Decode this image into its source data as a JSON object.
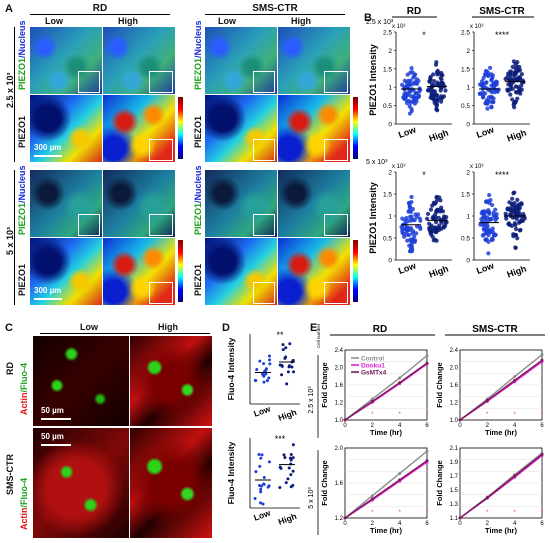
{
  "panelA": {
    "letter": "A",
    "rd_title": "RD",
    "sms_title": "SMS-CTR",
    "col_low": "Low",
    "col_high": "High",
    "density1": "2.5 x 10³",
    "density2": "5 x 10³",
    "label_piezo_nucleus_a": "PIEZO1",
    "label_piezo_nucleus_b": "/Nucleus",
    "label_piezo1": "PIEZO1",
    "scalebar": "300 µm",
    "colorbar_ticks": [
      "x10⁴",
      "2",
      "1.8",
      "1.6",
      "1.4",
      "1.2",
      "1",
      "0.8",
      "0.6"
    ]
  },
  "panelB": {
    "letter": "B",
    "rd_title": "RD",
    "sms_title": "SMS-CTR",
    "density1": "2.5 x 10³",
    "density2": "5 x 10³",
    "ylabel": "PIEZO1 Intensity",
    "yunit": "x 10³",
    "yticks": [
      "2.5",
      "2",
      "1.5",
      "1",
      "0.5",
      "0"
    ],
    "yticks2": [
      "2",
      "1.5",
      "1",
      "0.5",
      "0"
    ],
    "x_low": "Low",
    "x_high": "High",
    "sig": [
      "*",
      "****",
      "*",
      "****"
    ]
  },
  "panelC": {
    "letter": "C",
    "col_low": "Low",
    "col_high": "High",
    "row_rd": "RD",
    "row_sms": "SMS-CTR",
    "label_actin": "Actin",
    "label_fluo": "/Fluo-4",
    "scalebar": "50 µm"
  },
  "panelD": {
    "letter": "D",
    "ylabel": "Fluo-4 Intensity",
    "x_low": "Low",
    "x_high": "High",
    "sig_top": "**",
    "sig_bottom": "***"
  },
  "panelE": {
    "letter": "E",
    "rd_title": "RD",
    "sms_title": "SMS-CTR",
    "cell_number": "Cell number",
    "density1": "2.5 x 10³",
    "density2": "5 x 10³",
    "ylabel": "Fold Change",
    "xlabel": "Time (hr)",
    "legend": [
      "Control",
      "Dooku1",
      "GsMTx4"
    ],
    "legend_colors": [
      "#8c8c8c",
      "#e020d0",
      "#7a1a5a"
    ],
    "xticks": [
      "0",
      "2",
      "4",
      "6"
    ]
  },
  "chart_data": [
    {
      "type": "line",
      "title": "RD",
      "xlabel": "Time (hr)",
      "ylabel": "Fold Change",
      "x": [
        0,
        2,
        4,
        6
      ],
      "ylim": [
        1.0,
        2.5
      ],
      "series": [
        {
          "name": "Control",
          "values": [
            1.0,
            1.45,
            1.9,
            2.38
          ]
        },
        {
          "name": "Dooku1",
          "values": [
            1.0,
            1.38,
            1.78,
            2.2
          ]
        },
        {
          "name": "GsMTx4",
          "values": [
            1.0,
            1.4,
            1.8,
            2.22
          ]
        }
      ]
    },
    {
      "type": "line",
      "title": "SMS-CTR",
      "xlabel": "Time (hr)",
      "ylabel": "Fold Change",
      "x": [
        0,
        2,
        4,
        6
      ],
      "ylim": [
        1.0,
        2.5
      ],
      "series": [
        {
          "name": "Control",
          "values": [
            1.0,
            1.45,
            1.93,
            2.4
          ]
        },
        {
          "name": "Dooku1",
          "values": [
            1.0,
            1.4,
            1.82,
            2.25
          ]
        },
        {
          "name": "GsMTx4",
          "values": [
            1.0,
            1.42,
            1.85,
            2.28
          ]
        }
      ]
    },
    {
      "type": "line",
      "title": "RD",
      "xlabel": "Time (hr)",
      "ylabel": "Fold Change",
      "x": [
        0,
        2,
        4,
        6
      ],
      "ylim": [
        1.0,
        2.1
      ],
      "series": [
        {
          "name": "Control",
          "values": [
            1.0,
            1.35,
            1.7,
            2.05
          ]
        },
        {
          "name": "Dooku1",
          "values": [
            1.0,
            1.28,
            1.58,
            1.88
          ]
        },
        {
          "name": "GsMTx4",
          "values": [
            1.0,
            1.3,
            1.6,
            1.9
          ]
        }
      ]
    },
    {
      "type": "line",
      "title": "SMS-CTR",
      "xlabel": "Time (hr)",
      "ylabel": "Fold Change",
      "x": [
        0,
        2,
        4,
        6
      ],
      "ylim": [
        1.0,
        2.1
      ],
      "series": [
        {
          "name": "Control",
          "values": [
            1.0,
            1.33,
            1.68,
            2.02
          ]
        },
        {
          "name": "Dooku1",
          "values": [
            1.0,
            1.31,
            1.64,
            1.98
          ]
        },
        {
          "name": "GsMTx4",
          "values": [
            1.0,
            1.32,
            1.66,
            2.0
          ]
        }
      ]
    }
  ]
}
